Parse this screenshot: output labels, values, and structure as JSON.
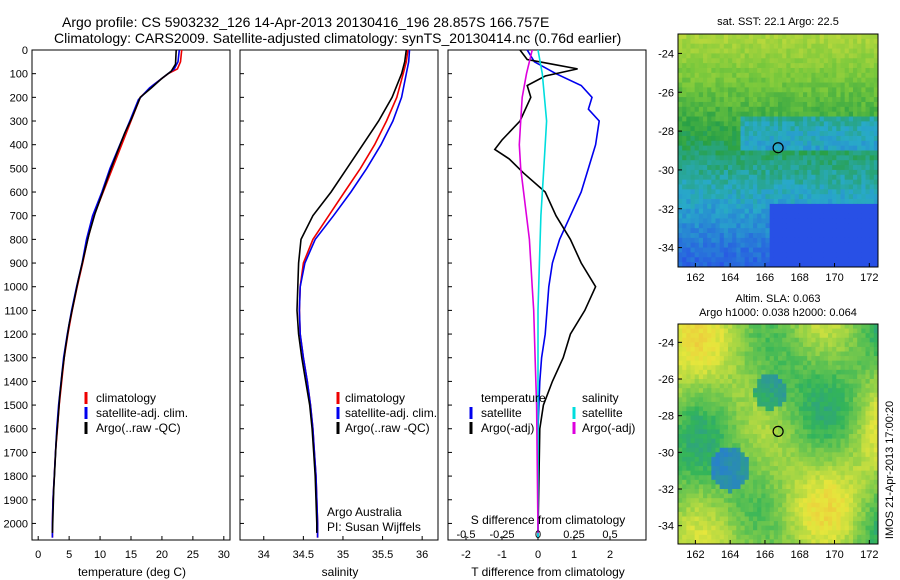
{
  "header": {
    "title_line1": "Argo profile: CS 5903232_126 14-Apr-2013 20130416_196 28.857S 166.757E",
    "title_line2": "Climatology: CARS2009. Satellite-adjusted climatology: synTS_20130414.nc (0.76d earlier)"
  },
  "colors": {
    "climatology": "#ee0000",
    "satellite": "#0000ee",
    "argo": "#000000",
    "salinity_satellite": "#00dddd",
    "salinity_argo": "#dd00dd"
  },
  "chart_data": [
    {
      "type": "line",
      "id": "temperature_profile",
      "xlabel": "temperature (deg C)",
      "ylabel": "",
      "xlim": [
        -1,
        31
      ],
      "ylim": [
        2070,
        0
      ],
      "xticks": [
        0,
        5,
        10,
        15,
        20,
        25,
        30
      ],
      "yticks": [
        0,
        100,
        200,
        300,
        400,
        500,
        600,
        700,
        800,
        900,
        1000,
        1100,
        1200,
        1300,
        1400,
        1500,
        1600,
        1700,
        1800,
        1900,
        2000
      ],
      "y_reversed": true,
      "legend": [
        "climatology",
        "satellite-adj. clim.",
        "Argo(..raw -QC)"
      ],
      "legend_position": "lower-center",
      "series": [
        {
          "name": "climatology",
          "color": "#ee0000",
          "points": [
            [
              23.2,
              0
            ],
            [
              23.0,
              50
            ],
            [
              22.5,
              80
            ],
            [
              21.0,
              100
            ],
            [
              18.5,
              150
            ],
            [
              16.5,
              200
            ],
            [
              15.0,
              300
            ],
            [
              13.5,
              400
            ],
            [
              12.0,
              500
            ],
            [
              10.5,
              600
            ],
            [
              9.0,
              700
            ],
            [
              8.0,
              800
            ],
            [
              7.2,
              900
            ],
            [
              6.3,
              1000
            ],
            [
              5.5,
              1100
            ],
            [
              4.8,
              1200
            ],
            [
              4.2,
              1300
            ],
            [
              3.8,
              1400
            ],
            [
              3.4,
              1500
            ],
            [
              3.1,
              1600
            ],
            [
              2.8,
              1700
            ],
            [
              2.6,
              1800
            ],
            [
              2.4,
              1900
            ],
            [
              2.3,
              2000
            ],
            [
              2.3,
              2060
            ]
          ]
        },
        {
          "name": "satellite-adj. clim.",
          "color": "#0000ee",
          "points": [
            [
              22.8,
              0
            ],
            [
              22.6,
              50
            ],
            [
              22.0,
              80
            ],
            [
              20.5,
              110
            ],
            [
              18.0,
              160
            ],
            [
              16.2,
              210
            ],
            [
              14.8,
              300
            ],
            [
              13.2,
              400
            ],
            [
              11.6,
              500
            ],
            [
              10.3,
              600
            ],
            [
              8.8,
              700
            ],
            [
              7.8,
              800
            ],
            [
              7.1,
              900
            ],
            [
              6.2,
              1000
            ],
            [
              5.4,
              1100
            ],
            [
              4.7,
              1200
            ],
            [
              4.1,
              1300
            ],
            [
              3.7,
              1400
            ],
            [
              3.3,
              1500
            ],
            [
              3.0,
              1600
            ],
            [
              2.8,
              1700
            ],
            [
              2.6,
              1800
            ],
            [
              2.4,
              1900
            ],
            [
              2.3,
              2000
            ],
            [
              2.3,
              2060
            ]
          ]
        },
        {
          "name": "Argo(..raw -QC)",
          "color": "#000000",
          "points": [
            [
              22.3,
              0
            ],
            [
              22.2,
              60
            ],
            [
              21.5,
              90
            ],
            [
              20.0,
              120
            ],
            [
              18.3,
              160
            ],
            [
              16.5,
              200
            ],
            [
              15.1,
              290
            ],
            [
              14.0,
              350
            ],
            [
              12.8,
              430
            ],
            [
              11.5,
              520
            ],
            [
              10.3,
              610
            ],
            [
              9.2,
              690
            ],
            [
              8.2,
              780
            ],
            [
              7.3,
              880
            ],
            [
              6.5,
              970
            ],
            [
              5.7,
              1070
            ],
            [
              5.0,
              1160
            ],
            [
              4.4,
              1260
            ],
            [
              3.9,
              1360
            ],
            [
              3.5,
              1460
            ],
            [
              3.2,
              1560
            ],
            [
              2.9,
              1660
            ],
            [
              2.7,
              1760
            ],
            [
              2.5,
              1860
            ],
            [
              2.4,
              1960
            ],
            [
              2.3,
              2040
            ]
          ]
        }
      ]
    },
    {
      "type": "line",
      "id": "salinity_profile",
      "xlabel": "salinity",
      "ylabel": "",
      "xlim": [
        33.7,
        36.2
      ],
      "ylim": [
        2070,
        0
      ],
      "xticks": [
        34,
        34.5,
        35,
        35.5,
        36
      ],
      "y_reversed": true,
      "legend": [
        "climatology",
        "satellite-adj. clim.",
        "Argo(..raw -QC)"
      ],
      "legend_position": "lower-right",
      "annotations": [
        "Argo Australia",
        "PI: Susan Wijffels"
      ],
      "series": [
        {
          "name": "climatology",
          "color": "#ee0000",
          "points": [
            [
              35.82,
              0
            ],
            [
              35.8,
              50
            ],
            [
              35.76,
              100
            ],
            [
              35.68,
              200
            ],
            [
              35.55,
              300
            ],
            [
              35.4,
              400
            ],
            [
              35.22,
              500
            ],
            [
              35.02,
              600
            ],
            [
              34.82,
              700
            ],
            [
              34.62,
              800
            ],
            [
              34.5,
              900
            ],
            [
              34.46,
              1000
            ],
            [
              34.45,
              1100
            ],
            [
              34.46,
              1200
            ],
            [
              34.5,
              1300
            ],
            [
              34.55,
              1400
            ],
            [
              34.59,
              1500
            ],
            [
              34.62,
              1600
            ],
            [
              34.64,
              1700
            ],
            [
              34.66,
              1800
            ],
            [
              34.67,
              1900
            ],
            [
              34.68,
              2000
            ],
            [
              34.68,
              2060
            ]
          ]
        },
        {
          "name": "satellite-adj. clim.",
          "color": "#0000ee",
          "points": [
            [
              35.84,
              0
            ],
            [
              35.83,
              50
            ],
            [
              35.8,
              100
            ],
            [
              35.74,
              200
            ],
            [
              35.63,
              300
            ],
            [
              35.48,
              400
            ],
            [
              35.3,
              500
            ],
            [
              35.1,
              600
            ],
            [
              34.88,
              700
            ],
            [
              34.65,
              800
            ],
            [
              34.52,
              900
            ],
            [
              34.46,
              1000
            ],
            [
              34.45,
              1100
            ],
            [
              34.46,
              1200
            ],
            [
              34.5,
              1300
            ],
            [
              34.55,
              1400
            ],
            [
              34.59,
              1500
            ],
            [
              34.62,
              1600
            ],
            [
              34.64,
              1700
            ],
            [
              34.66,
              1800
            ],
            [
              34.67,
              1900
            ],
            [
              34.68,
              2000
            ],
            [
              34.68,
              2060
            ]
          ]
        },
        {
          "name": "Argo(..raw -QC)",
          "color": "#000000",
          "points": [
            [
              35.8,
              0
            ],
            [
              35.78,
              50
            ],
            [
              35.74,
              100
            ],
            [
              35.62,
              200
            ],
            [
              35.45,
              300
            ],
            [
              35.25,
              400
            ],
            [
              35.05,
              500
            ],
            [
              34.85,
              600
            ],
            [
              34.62,
              700
            ],
            [
              34.47,
              800
            ],
            [
              34.44,
              900
            ],
            [
              34.43,
              1000
            ],
            [
              34.42,
              1100
            ],
            [
              34.44,
              1200
            ],
            [
              34.48,
              1300
            ],
            [
              34.53,
              1400
            ],
            [
              34.58,
              1500
            ],
            [
              34.61,
              1600
            ],
            [
              34.63,
              1700
            ],
            [
              34.65,
              1800
            ],
            [
              34.66,
              1900
            ],
            [
              34.67,
              2000
            ],
            [
              34.67,
              2040
            ]
          ]
        }
      ]
    },
    {
      "type": "line",
      "id": "difference_from_climatology",
      "xlabel": "T difference from climatology",
      "top_axis_label": "S difference from climatology",
      "xlim": [
        -2.5,
        3
      ],
      "ylim": [
        2070,
        0
      ],
      "xticks": [
        -2,
        -1,
        0,
        1,
        2
      ],
      "xtick_labels": [
        "-2",
        "-1",
        "0",
        "1",
        "2"
      ],
      "top_xticks": [
        "-0.5",
        "-0.25",
        "0",
        "0.25",
        "0.5"
      ],
      "y_reversed": true,
      "legend_groups": [
        {
          "title": "temperature",
          "entries": [
            "satellite",
            "Argo(-adj)"
          ]
        },
        {
          "title": "salinity",
          "entries": [
            "satellite",
            "Argo(-adj)"
          ]
        }
      ],
      "legend_position": "lower-center",
      "series": [
        {
          "name": "temperature satellite",
          "color": "#0000ee",
          "points": [
            [
              -0.3,
              0
            ],
            [
              -0.1,
              50
            ],
            [
              0.5,
              100
            ],
            [
              1.2,
              150
            ],
            [
              1.5,
              200
            ],
            [
              1.4,
              250
            ],
            [
              1.7,
              300
            ],
            [
              1.6,
              400
            ],
            [
              1.4,
              500
            ],
            [
              1.2,
              600
            ],
            [
              0.9,
              700
            ],
            [
              0.6,
              800
            ],
            [
              0.4,
              900
            ],
            [
              0.3,
              1000
            ],
            [
              0.25,
              1100
            ],
            [
              0.2,
              1200
            ],
            [
              0.1,
              1300
            ],
            [
              0.05,
              1400
            ],
            [
              0.0,
              1600
            ],
            [
              0.0,
              2060
            ]
          ]
        },
        {
          "name": "temperature Argo(-adj)",
          "color": "#000000",
          "points": [
            [
              -0.5,
              0
            ],
            [
              -0.3,
              40
            ],
            [
              0.4,
              60
            ],
            [
              1.1,
              80
            ],
            [
              0.2,
              110
            ],
            [
              -0.3,
              150
            ],
            [
              -0.2,
              200
            ],
            [
              -0.5,
              300
            ],
            [
              -1.0,
              380
            ],
            [
              -1.2,
              420
            ],
            [
              -0.8,
              460
            ],
            [
              -0.4,
              520
            ],
            [
              0.2,
              600
            ],
            [
              0.5,
              700
            ],
            [
              0.9,
              800
            ],
            [
              1.2,
              900
            ],
            [
              1.6,
              1000
            ],
            [
              1.3,
              1100
            ],
            [
              0.9,
              1200
            ],
            [
              0.7,
              1300
            ],
            [
              0.4,
              1400
            ],
            [
              0.15,
              1500
            ],
            [
              0.05,
              1600
            ],
            [
              0.0,
              2040
            ]
          ]
        },
        {
          "name": "salinity satellite",
          "color": "#00dddd",
          "points": [
            [
              0.0,
              0
            ],
            [
              0.03,
              100
            ],
            [
              0.06,
              300
            ],
            [
              0.04,
              500
            ],
            [
              0.02,
              700
            ],
            [
              0.01,
              900
            ],
            [
              0.0,
              1100
            ],
            [
              0.0,
              2060
            ]
          ]
        },
        {
          "name": "salinity Argo(-adj)",
          "color": "#dd00dd",
          "points": [
            [
              -0.04,
              0
            ],
            [
              -0.08,
              100
            ],
            [
              -0.11,
              200
            ],
            [
              -0.12,
              300
            ],
            [
              -0.13,
              400
            ],
            [
              -0.12,
              500
            ],
            [
              -0.1,
              600
            ],
            [
              -0.08,
              700
            ],
            [
              -0.06,
              800
            ],
            [
              -0.05,
              900
            ],
            [
              -0.04,
              1000
            ],
            [
              -0.03,
              1100
            ],
            [
              -0.02,
              1300
            ],
            [
              -0.01,
              1500
            ],
            [
              0.0,
              2040
            ]
          ]
        }
      ]
    },
    {
      "type": "heatmap",
      "id": "sat_sst_map",
      "title": "sat. SST: 22.1  Argo: 22.5",
      "xlim": [
        161,
        172.5
      ],
      "ylim": [
        -35,
        -23
      ],
      "xticks": [
        162,
        164,
        166,
        168,
        170,
        172
      ],
      "yticks": [
        -24,
        -26,
        -28,
        -30,
        -32,
        -34
      ],
      "marker": {
        "lon": 166.757,
        "lat": -28.857
      }
    },
    {
      "type": "heatmap",
      "id": "altim_sla_map",
      "title": "Altim. SLA: 0.063",
      "subtitle": "Argo h1000: 0.038 h2000: 0.064",
      "xlim": [
        161,
        172.5
      ],
      "ylim": [
        -35,
        -23
      ],
      "xticks": [
        162,
        164,
        166,
        168,
        170,
        172
      ],
      "yticks": [
        -24,
        -26,
        -28,
        -30,
        -32,
        -34
      ],
      "marker": {
        "lon": 166.757,
        "lat": -28.857
      },
      "side_label": "IMOS 21-Apr-2013 17:00:20"
    }
  ]
}
